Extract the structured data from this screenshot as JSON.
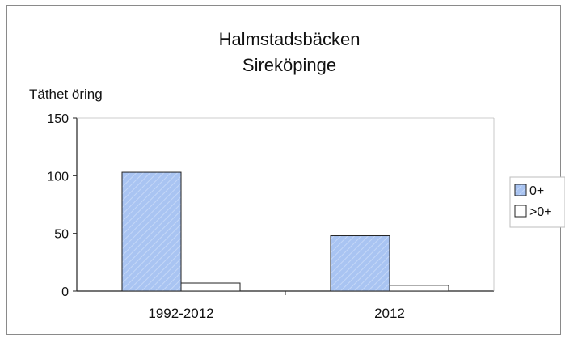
{
  "chart_data": {
    "type": "bar",
    "title": [
      "Halmstadsbäcken",
      "Sireköpinge"
    ],
    "ylabel": "Täthet öring",
    "xlabel": "",
    "categories": [
      "1992-2012",
      "2012"
    ],
    "series": [
      {
        "name": "0+",
        "values": [
          103,
          48
        ],
        "color": "#a9c4f2"
      },
      {
        "name": ">0+",
        "values": [
          7,
          5
        ],
        "color": "#ffffff"
      }
    ],
    "ylim": [
      0,
      150
    ],
    "yticks": [
      0,
      50,
      100,
      150
    ],
    "grid": false,
    "legend": "right"
  }
}
